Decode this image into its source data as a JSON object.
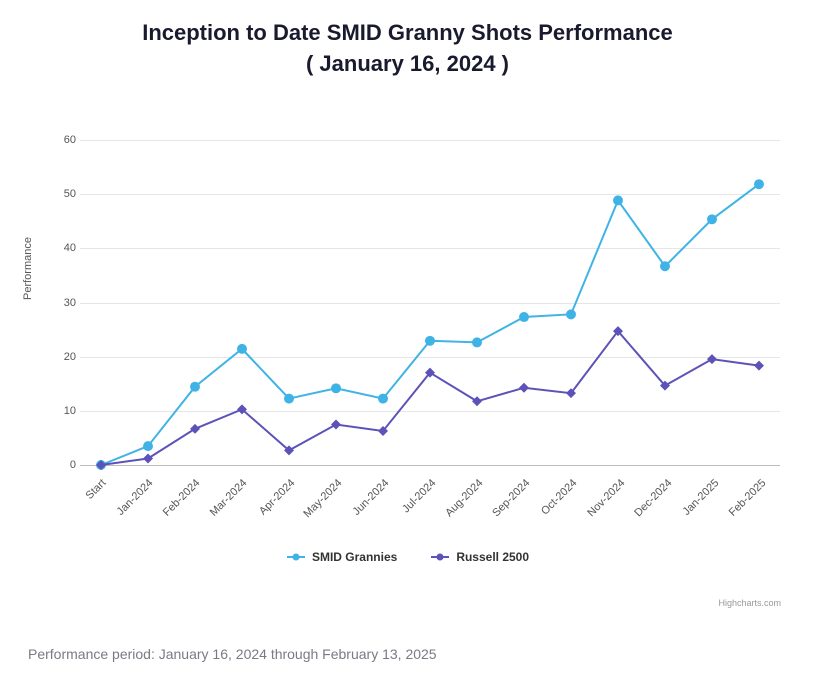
{
  "title_line1": "Inception to Date SMID Granny Shots Performance",
  "title_line2": "( January 16, 2024 )",
  "chart": {
    "type": "line",
    "ylabel": "Performance",
    "ylim": [
      0,
      60
    ],
    "ytick_step": 10,
    "categories": [
      "Start",
      "Jan-2024",
      "Feb-2024",
      "Mar-2024",
      "Apr-2024",
      "May-2024",
      "Jun-2024",
      "Jul-2024",
      "Aug-2024",
      "Sep-2024",
      "Oct-2024",
      "Nov-2024",
      "Dec-2024",
      "Jan-2025",
      "Feb-2025"
    ],
    "series": [
      {
        "name": "SMID Grannies",
        "color": "#3fb3e6",
        "marker": "circle",
        "marker_size": 5,
        "line_width": 2,
        "values": [
          0,
          3.5,
          14.5,
          21.5,
          12.3,
          14.2,
          12.3,
          23.0,
          22.7,
          27.4,
          27.9,
          49.0,
          36.8,
          45.5,
          52.0
        ]
      },
      {
        "name": "Russell 2500",
        "color": "#5c52b8",
        "marker": "diamond",
        "marker_size": 5,
        "line_width": 2,
        "values": [
          0,
          1.2,
          6.7,
          10.3,
          2.7,
          7.5,
          6.3,
          17.1,
          11.8,
          14.3,
          13.3,
          24.8,
          14.7,
          19.6,
          18.4
        ]
      }
    ],
    "background_color": "#ffffff",
    "grid_color": "#e6e6e6",
    "axis_color": "#bcbcbc",
    "tick_fontsize": 11,
    "title_fontsize": 22
  },
  "credit": "Highcharts.com",
  "footnote": "Performance period: January 16, 2024 through February 13, 2025"
}
